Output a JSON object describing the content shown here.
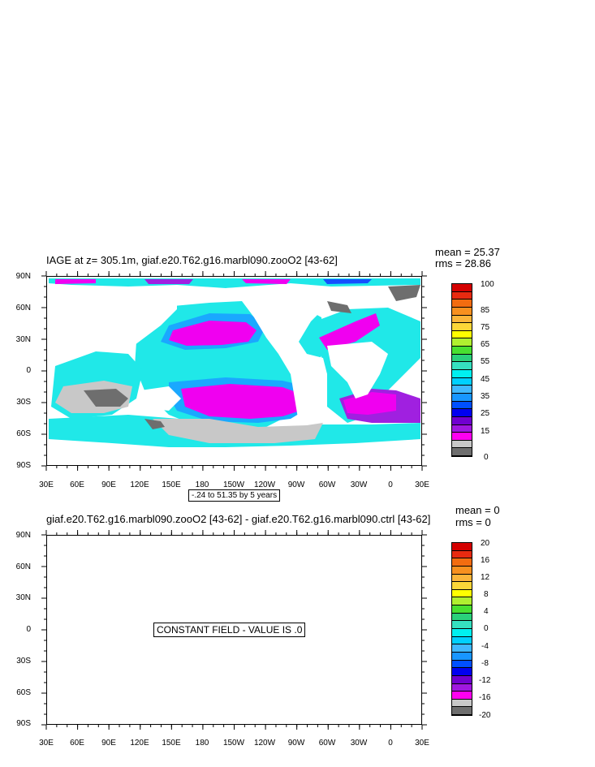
{
  "top_panel": {
    "title": "IAGE at z= 305.1m, giaf.e20.T62.g16.marbl090.zooO2 [43-62]",
    "mean": "mean = 25.37",
    "rms": "rms = 28.86",
    "contour_info": "-.24 to 51.35 by 5 years",
    "lat_ticks": [
      "90N",
      "60N",
      "30N",
      "0",
      "30S",
      "60S",
      "90S"
    ],
    "lon_ticks": [
      "30E",
      "60E",
      "90E",
      "120E",
      "150E",
      "180",
      "150W",
      "120W",
      "90W",
      "60W",
      "30W",
      "0",
      "30E"
    ],
    "colorbar_labels": [
      "100",
      "85",
      "75",
      "65",
      "55",
      "45",
      "35",
      "25",
      "15",
      "0"
    ],
    "colorbar_colors": [
      "#d40000",
      "#e82a10",
      "#f26c10",
      "#f7901f",
      "#fbb53a",
      "#fcd638",
      "#ffff00",
      "#b0f030",
      "#48e030",
      "#2ad07a",
      "#36e0c0",
      "#00f0f0",
      "#00d0ff",
      "#40b8ff",
      "#1896ff",
      "#0050ff",
      "#0000f0",
      "#7000d0",
      "#a018e0",
      "#ff00f0",
      "#c8c8c8",
      "#6e6e6e"
    ]
  },
  "bottom_panel": {
    "title": "giaf.e20.T62.g16.marbl090.zooO2 [43-62] - giaf.e20.T62.g16.marbl090.ctrl [43-62]",
    "mean": "mean = 0",
    "rms": "rms = 0",
    "constant_message": "CONSTANT FIELD - VALUE IS .0",
    "lat_ticks": [
      "90N",
      "60N",
      "30N",
      "0",
      "30S",
      "60S",
      "90S"
    ],
    "lon_ticks": [
      "30E",
      "60E",
      "90E",
      "120E",
      "150E",
      "180",
      "150W",
      "120W",
      "90W",
      "60W",
      "30W",
      "0",
      "30E"
    ],
    "colorbar_labels": [
      "20",
      "16",
      "12",
      "8",
      "4",
      "0",
      "-4",
      "-8",
      "-12",
      "-16",
      "-20"
    ],
    "colorbar_colors": [
      "#d40000",
      "#e82a10",
      "#f26c10",
      "#f7901f",
      "#fbb53a",
      "#fcd638",
      "#ffff00",
      "#b0f030",
      "#48e030",
      "#2ad07a",
      "#36e0c0",
      "#00f0f0",
      "#00d0ff",
      "#40b8ff",
      "#1896ff",
      "#0050ff",
      "#0000f0",
      "#7000d0",
      "#a018e0",
      "#ff00f0",
      "#c8c8c8",
      "#6e6e6e"
    ]
  },
  "colors": {
    "land": "#ffffff",
    "ocean_cyan": "#20e8e8",
    "ocean_teal": "#36d8d0",
    "ocean_sky": "#1aa8ff",
    "ocean_blue": "#1450ff",
    "ocean_purple": "#a020e0",
    "ocean_magenta": "#f000f0",
    "ocean_grey": "#c8c8c8",
    "ocean_dark": "#6e6e6e"
  }
}
